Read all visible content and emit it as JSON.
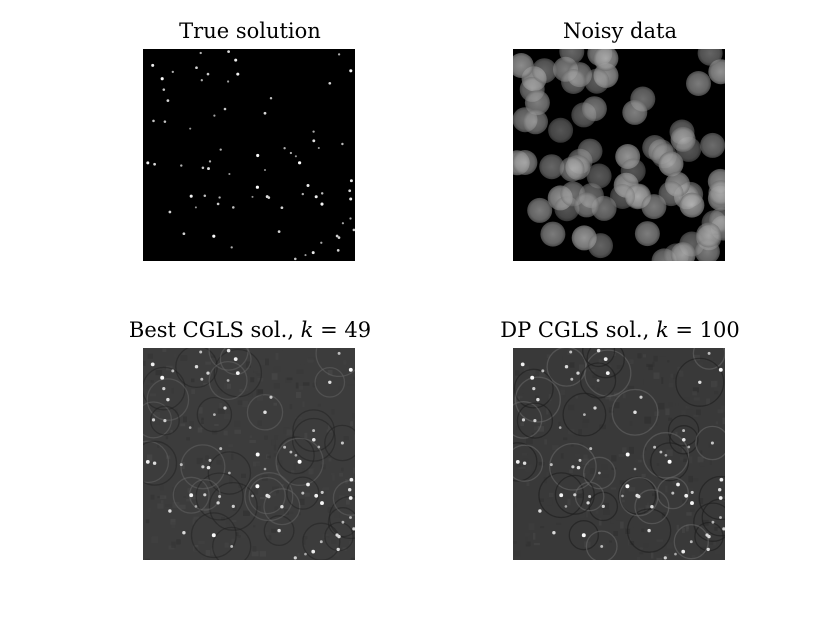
{
  "figure": {
    "panels": [
      {
        "title_main": "True solution",
        "title_var": "",
        "title_value": "",
        "image_desc": "sparse bright point sources on black background"
      },
      {
        "title_main": "Noisy data",
        "title_var": "",
        "title_value": "",
        "image_desc": "blurred overlapping bright discs (bokeh-like) on black background"
      },
      {
        "title_main": "Best CGLS sol., ",
        "title_var": "k",
        "title_value": " = 49",
        "image_desc": "gray reconstruction with bright points and ring artifacts"
      },
      {
        "title_main": "DP CGLS sol., ",
        "title_var": "k",
        "title_value": " = 100",
        "image_desc": "gray reconstruction with bright points and ring artifacts"
      }
    ]
  }
}
